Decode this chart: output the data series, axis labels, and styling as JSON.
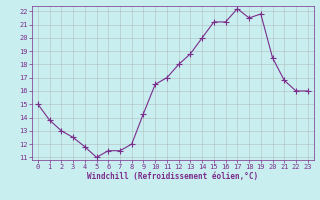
{
  "x": [
    0,
    1,
    2,
    3,
    4,
    5,
    6,
    7,
    8,
    9,
    10,
    11,
    12,
    13,
    14,
    15,
    16,
    17,
    18,
    19,
    20,
    21,
    22,
    23
  ],
  "y": [
    15,
    13.8,
    13,
    12.5,
    11.8,
    11.0,
    11.5,
    11.5,
    12.0,
    14.3,
    16.5,
    17.0,
    18.0,
    18.8,
    20.0,
    21.2,
    21.2,
    22.2,
    21.5,
    21.8,
    18.5,
    16.8,
    16.0,
    16.0
  ],
  "line_color": "#7b2d8b",
  "marker": "+",
  "marker_size": 4,
  "bg_color": "#c8eef0",
  "grid_color": "#aaaaaa",
  "xlabel": "Windchill (Refroidissement éolien,°C)",
  "xlabel_color": "#7b2d8b",
  "tick_color": "#7b2d8b",
  "spine_color": "#7b2d8b",
  "xlim_min": -0.5,
  "xlim_max": 23.5,
  "ylim_min": 10.8,
  "ylim_max": 22.4,
  "yticks": [
    11,
    12,
    13,
    14,
    15,
    16,
    17,
    18,
    19,
    20,
    21,
    22
  ],
  "xticks": [
    0,
    1,
    2,
    3,
    4,
    5,
    6,
    7,
    8,
    9,
    10,
    11,
    12,
    13,
    14,
    15,
    16,
    17,
    18,
    19,
    20,
    21,
    22,
    23
  ],
  "tick_labelsize": 5.0,
  "xlabel_fontsize": 5.5,
  "linewidth": 0.8,
  "markeredgewidth": 0.8
}
